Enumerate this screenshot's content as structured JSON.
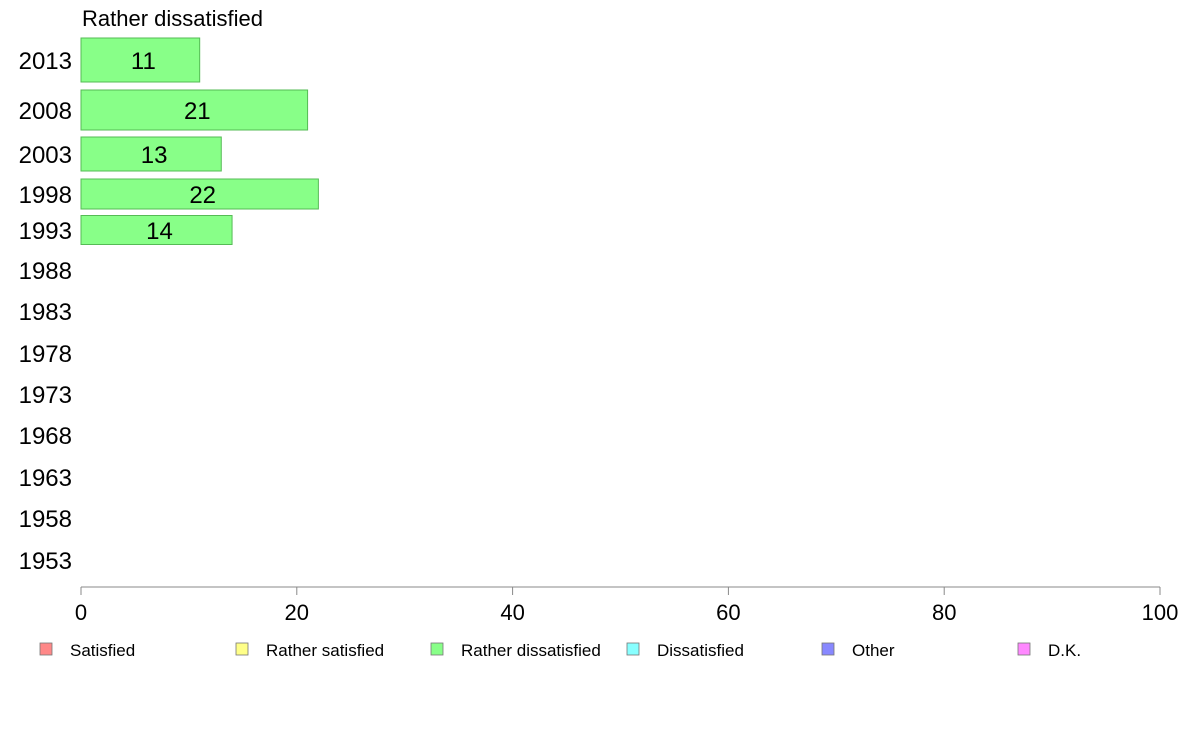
{
  "chart_data": {
    "type": "bar",
    "orientation": "horizontal",
    "title": "Rather dissatisfied",
    "categories": [
      "2013",
      "2008",
      "2003",
      "1998",
      "1993",
      "1988",
      "1983",
      "1978",
      "1973",
      "1968",
      "1963",
      "1958",
      "1953"
    ],
    "values": [
      11,
      21,
      13,
      22,
      14,
      null,
      null,
      null,
      null,
      null,
      null,
      null,
      null
    ],
    "bar_color": "#88ff88",
    "bar_stroke": "#55bb55",
    "xlim": [
      0,
      100
    ],
    "xticks": [
      0,
      20,
      40,
      60,
      80,
      100
    ],
    "xlabel": "",
    "ylabel": "",
    "grid": false,
    "legend_position": "bottom",
    "legend": [
      {
        "label": "Satisfied",
        "color": "#ff8888"
      },
      {
        "label": "Rather satisfied",
        "color": "#ffff88"
      },
      {
        "label": "Rather dissatisfied",
        "color": "#88ff88"
      },
      {
        "label": "Dissatisfied",
        "color": "#88ffff"
      },
      {
        "label": "Other",
        "color": "#8888ff"
      },
      {
        "label": "D.K.",
        "color": "#ff88ff"
      }
    ]
  }
}
